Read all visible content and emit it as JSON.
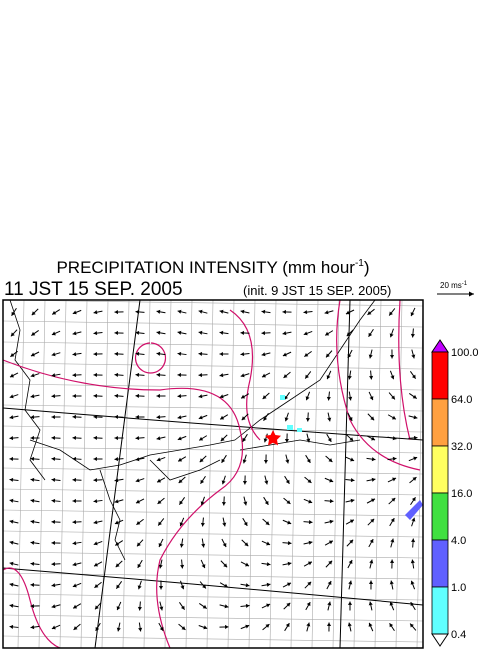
{
  "header": {
    "title": "PRECIPITATION INTENSITY (mm hour",
    "title_sup": "-1",
    "title_end": ")",
    "time": "11 JST 15 SEP. 2005",
    "init": "(init. 9 JST 15 SEP. 2005)"
  },
  "reference_vector": {
    "label": "20 ms",
    "label_sup": "-1"
  },
  "colorbar": {
    "levels": [
      {
        "label": "100.0",
        "color": "#ff0000"
      },
      {
        "label": "64.0",
        "color": "#ffa040"
      },
      {
        "label": "32.0",
        "color": "#ffff60"
      },
      {
        "label": "16.0",
        "color": "#40e040"
      },
      {
        "label": "4.0",
        "color": "#6060ff"
      },
      {
        "label": "1.0",
        "color": "#60ffff"
      },
      {
        "label": "0.4",
        "color": "#ffffff"
      }
    ],
    "over_color": "#c000ff"
  }
}
